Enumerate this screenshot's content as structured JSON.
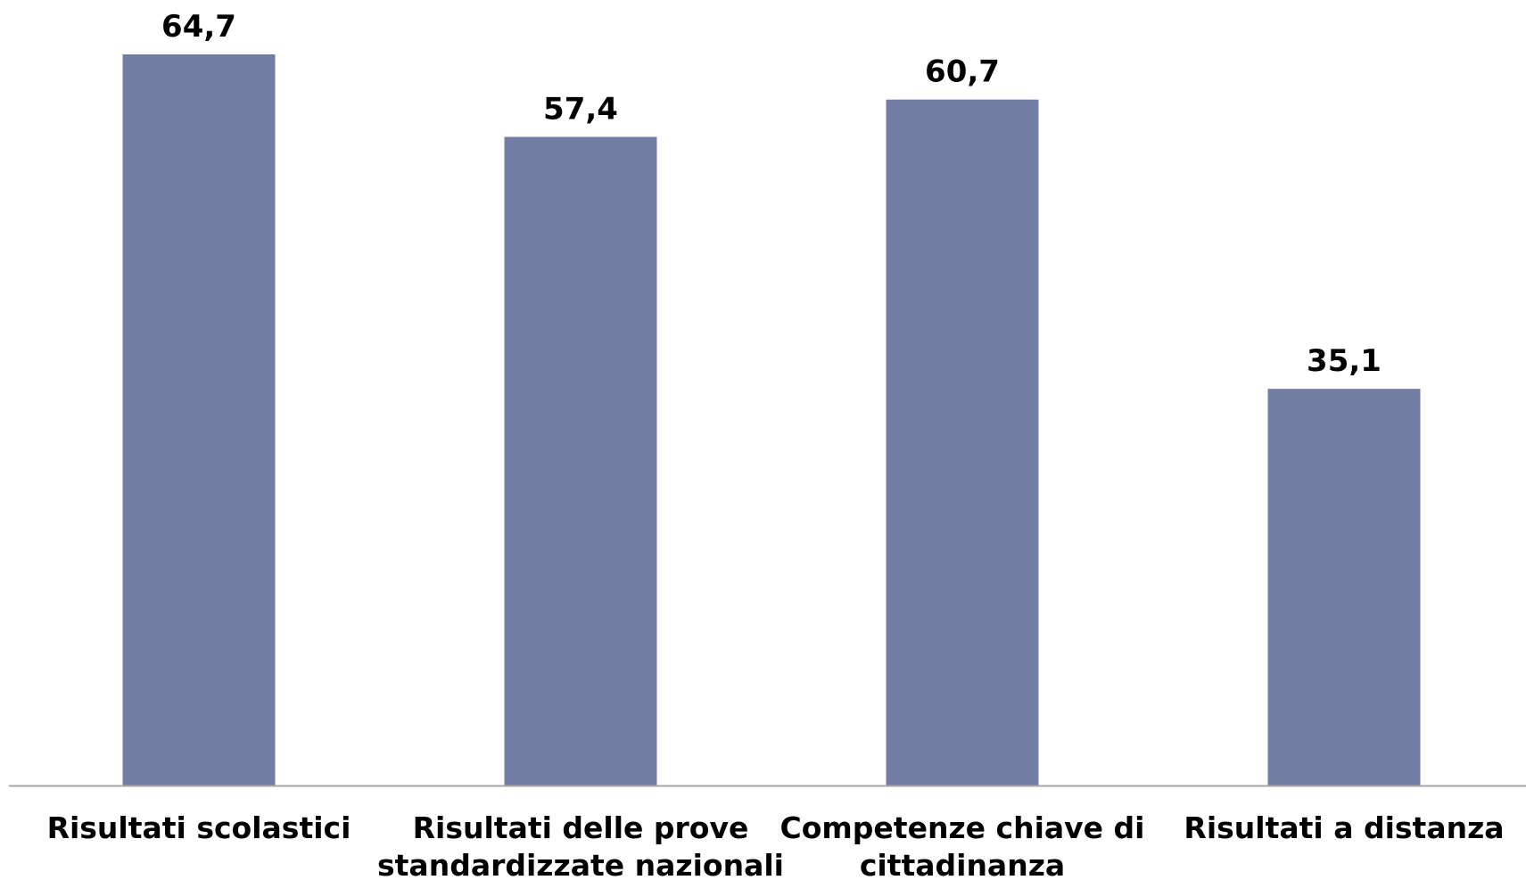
{
  "chart_data": {
    "type": "bar",
    "categories": [
      [
        "Risultati scolastici"
      ],
      [
        "Risultati delle prove",
        "standardizzate nazionali"
      ],
      [
        "Competenze chiave di",
        "cittadinanza"
      ],
      [
        "Risultati a distanza"
      ]
    ],
    "values": [
      64.7,
      57.4,
      60.7,
      35.1
    ],
    "value_labels": [
      "64,7",
      "57,4",
      "60,7",
      "35,1"
    ],
    "ylim": [
      0,
      64.7
    ],
    "grid": false,
    "legend": "none",
    "bar_color": "#737ca3",
    "axis_color": "#a6a6a6"
  }
}
